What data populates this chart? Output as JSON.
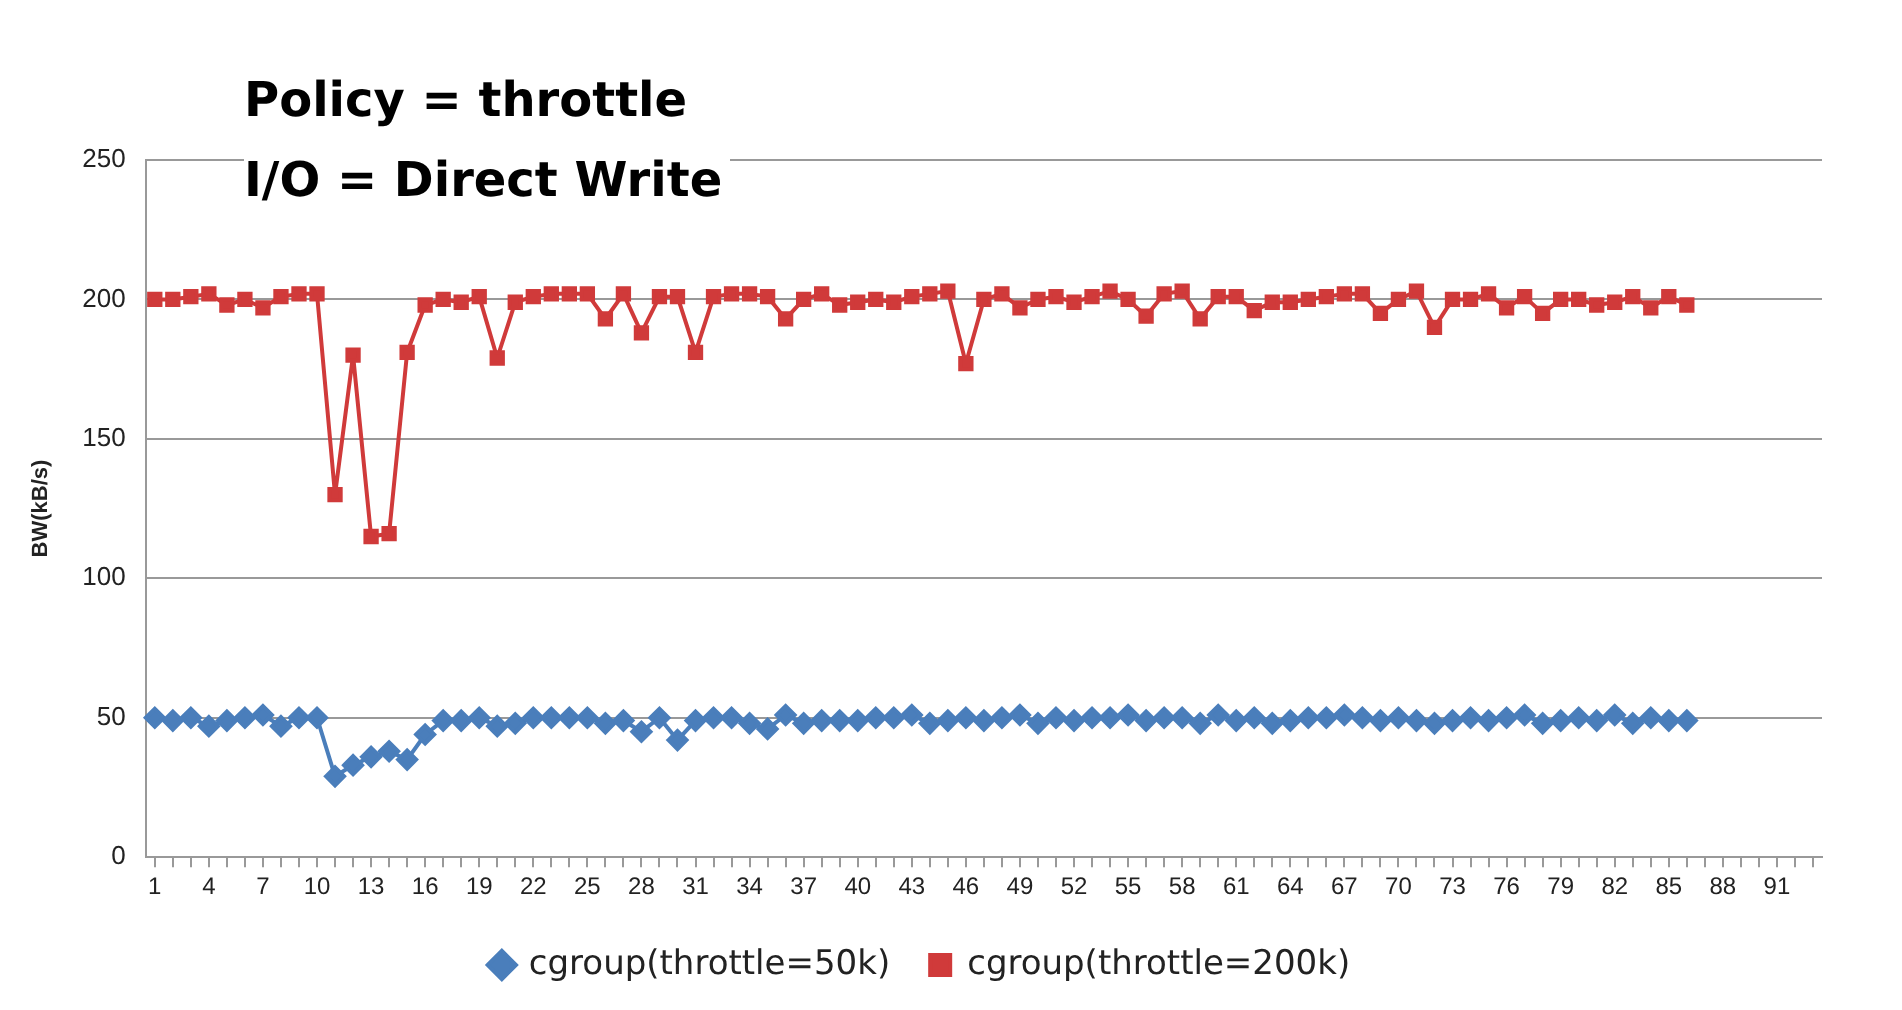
{
  "chart_data": {
    "type": "line",
    "title": "Policy = throttle",
    "subtitle": "I/O = Direct Write",
    "ylabel": "BW(kB/s)",
    "categories": [
      "1",
      null,
      null,
      "4",
      null,
      null,
      "7",
      null,
      null,
      "10",
      null,
      null,
      "13",
      null,
      null,
      "16",
      null,
      null,
      "19",
      null,
      null,
      "22",
      null,
      null,
      "25",
      null,
      null,
      "28",
      null,
      null,
      "31",
      null,
      null,
      "34",
      null,
      null,
      "37",
      null,
      null,
      "40",
      null,
      null,
      "43",
      null,
      null,
      "46",
      null,
      null,
      "49",
      null,
      null,
      "52",
      null,
      null,
      "55",
      null,
      null,
      "58",
      null,
      null,
      "61",
      null,
      null,
      "64",
      null,
      null,
      "67",
      null,
      null,
      "70",
      null,
      null,
      "73",
      null,
      null,
      "76",
      null,
      null,
      "79",
      null,
      null,
      "82",
      null,
      null,
      "85",
      null,
      null,
      "88",
      null,
      null,
      "91",
      null,
      null
    ],
    "series": [
      {
        "name": "cgroup(throttle=50k)",
        "color": "#4a7ebb",
        "marker": "diamond",
        "values": [
          50,
          49,
          50,
          47,
          49,
          50,
          51,
          47,
          50,
          50,
          29,
          33,
          36,
          38,
          35,
          44,
          49,
          49,
          50,
          47,
          48,
          50,
          50,
          50,
          50,
          48,
          49,
          45,
          50,
          42,
          49,
          50,
          50,
          48,
          46,
          51,
          48,
          49,
          49,
          49,
          50,
          50,
          51,
          48,
          49,
          50,
          49,
          50,
          51,
          48,
          50,
          49,
          50,
          50,
          51,
          49,
          50,
          50,
          48,
          51,
          49,
          50,
          48,
          49,
          50,
          50,
          51,
          50,
          49,
          50,
          49,
          48,
          49,
          50,
          49,
          50,
          51,
          48,
          49,
          50,
          49,
          51,
          48,
          50,
          49,
          49,
          null,
          null,
          null,
          null,
          null,
          null,
          null
        ]
      },
      {
        "name": "cgroup(throttle=200k)",
        "color": "#d03a3a",
        "marker": "square",
        "values": [
          200,
          200,
          201,
          202,
          198,
          200,
          197,
          201,
          202,
          202,
          130,
          180,
          115,
          116,
          181,
          198,
          200,
          199,
          201,
          179,
          199,
          201,
          202,
          202,
          202,
          193,
          202,
          188,
          201,
          201,
          181,
          201,
          202,
          202,
          201,
          193,
          200,
          202,
          198,
          199,
          200,
          199,
          201,
          202,
          203,
          177,
          200,
          202,
          197,
          200,
          201,
          199,
          201,
          203,
          200,
          194,
          202,
          203,
          193,
          201,
          201,
          196,
          199,
          199,
          200,
          201,
          202,
          202,
          195,
          200,
          203,
          190,
          200,
          200,
          202,
          197,
          201,
          195,
          200,
          200,
          198,
          199,
          201,
          197,
          201,
          198,
          null,
          null,
          null,
          null,
          null,
          null,
          null
        ]
      }
    ],
    "ylim": [
      0,
      250
    ],
    "yticks": [
      0,
      50,
      100,
      150,
      200,
      250
    ],
    "grid": "y",
    "legend": "bottom"
  }
}
